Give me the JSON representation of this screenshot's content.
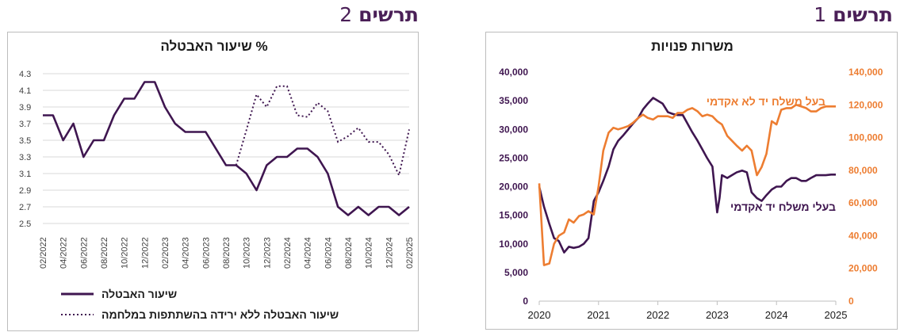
{
  "figures": [
    {
      "word": "תרשים",
      "number": "2"
    },
    {
      "word": "תרשים",
      "number": "1"
    }
  ],
  "colors": {
    "purple": "#3f1650",
    "orange": "#ed7d31",
    "heading": "#4a1f57",
    "grid": "#d9d9d9",
    "tick": "#404040"
  },
  "chart_data": [
    {
      "type": "line",
      "title": "שיעור האבטלה %",
      "xlabel": "",
      "ylabel": "",
      "ylim": [
        2.5,
        4.3
      ],
      "yticks": [
        "2.5",
        "2.7",
        "2.9",
        "3.1",
        "3.3",
        "3.5",
        "3.7",
        "3.9",
        "4.1",
        "4.3"
      ],
      "xticks": [
        "02/2022",
        "04/2022",
        "06/2022",
        "08/2022",
        "10/2022",
        "12/2022",
        "02/2023",
        "04/2023",
        "06/2023",
        "08/2023",
        "10/2023",
        "12/2023",
        "02/2024",
        "04/2024",
        "06/2024",
        "08/2024",
        "10/2024",
        "12/2024",
        "02/2025"
      ],
      "grid": true,
      "legend": "bottom",
      "series": [
        {
          "name": "שיעור האבטלה",
          "style": "solid",
          "color": "#3f1650",
          "values": [
            3.8,
            3.8,
            3.5,
            3.7,
            3.3,
            3.5,
            3.5,
            3.8,
            4.0,
            4.0,
            4.2,
            4.2,
            3.9,
            3.7,
            3.6,
            3.6,
            3.6,
            3.4,
            3.2,
            3.2,
            3.1,
            2.9,
            3.2,
            3.3,
            3.3,
            3.4,
            3.4,
            3.3,
            3.1,
            2.7,
            2.6,
            2.7,
            2.6,
            2.7,
            2.7,
            2.6,
            2.7
          ]
        },
        {
          "name": "שיעור האבטלה ללא ירידה בהשתתפות במלחמה",
          "style": "dotted",
          "color": "#3f1650",
          "start_index": 19,
          "values": [
            3.2,
            3.62,
            4.05,
            3.9,
            4.15,
            4.15,
            3.8,
            3.78,
            3.95,
            3.85,
            3.48,
            3.55,
            3.65,
            3.48,
            3.48,
            3.33,
            3.08,
            3.63
          ]
        }
      ]
    },
    {
      "type": "line",
      "title": "משרות פנויות",
      "xlabel": "",
      "ylabel": "",
      "xlim": [
        2020,
        2025
      ],
      "xticks": [
        "2020",
        "2021",
        "2022",
        "2023",
        "2024",
        "2025"
      ],
      "ylim_left": [
        0,
        40000
      ],
      "ylim_right": [
        0,
        140000
      ],
      "yticks_left": [
        "0",
        "5,000",
        "10,000",
        "15,000",
        "20,000",
        "25,000",
        "30,000",
        "35,000",
        "40,000"
      ],
      "yticks_right": [
        "0",
        "20,000",
        "40,000",
        "60,000",
        "80,000",
        "100,000",
        "120,000",
        "140,000"
      ],
      "grid": false,
      "series": [
        {
          "name": "בעלי משלח יד אקדמי",
          "axis": "left",
          "color": "#3f1650",
          "x": [
            2020.0,
            2020.08,
            2020.17,
            2020.25,
            2020.33,
            2020.42,
            2020.5,
            2020.58,
            2020.67,
            2020.75,
            2020.83,
            2020.92,
            2021.0,
            2021.08,
            2021.17,
            2021.25,
            2021.33,
            2021.42,
            2021.5,
            2021.58,
            2021.67,
            2021.75,
            2021.83,
            2021.92,
            2022.0,
            2022.08,
            2022.17,
            2022.25,
            2022.33,
            2022.42,
            2022.5,
            2022.58,
            2022.67,
            2022.75,
            2022.83,
            2022.92,
            2023.0,
            2023.04,
            2023.08,
            2023.17,
            2023.25,
            2023.33,
            2023.42,
            2023.5,
            2023.58,
            2023.67,
            2023.75,
            2023.83,
            2023.92,
            2024.0,
            2024.08,
            2024.17,
            2024.25,
            2024.33,
            2024.42,
            2024.5,
            2024.58,
            2024.67,
            2024.75,
            2024.83,
            2024.92,
            2025.0
          ],
          "values": [
            20000,
            16500,
            13500,
            11000,
            10500,
            8500,
            9500,
            9300,
            9500,
            10000,
            11000,
            17500,
            19000,
            21000,
            23500,
            26500,
            28000,
            29000,
            30000,
            31000,
            32000,
            33500,
            34500,
            35500,
            35000,
            34500,
            33000,
            32700,
            32500,
            32500,
            31000,
            29500,
            28000,
            26500,
            25000,
            23500,
            15500,
            18000,
            22000,
            21500,
            22000,
            22500,
            22800,
            22500,
            19000,
            18000,
            17500,
            18500,
            19500,
            20000,
            20000,
            21000,
            21500,
            21500,
            21000,
            21000,
            21500,
            22000,
            22000,
            22000,
            22100,
            22100
          ]
        },
        {
          "name": "בעל משלח יד לא אקדמי",
          "axis": "right",
          "color": "#ed7d31",
          "x": [
            2020.0,
            2020.08,
            2020.17,
            2020.25,
            2020.33,
            2020.42,
            2020.5,
            2020.58,
            2020.67,
            2020.75,
            2020.83,
            2020.92,
            2021.0,
            2021.08,
            2021.17,
            2021.25,
            2021.33,
            2021.42,
            2021.5,
            2021.58,
            2021.67,
            2021.75,
            2021.83,
            2021.92,
            2022.0,
            2022.08,
            2022.17,
            2022.25,
            2022.33,
            2022.42,
            2022.5,
            2022.58,
            2022.67,
            2022.75,
            2022.83,
            2022.92,
            2023.0,
            2023.08,
            2023.17,
            2023.25,
            2023.33,
            2023.42,
            2023.5,
            2023.58,
            2023.67,
            2023.75,
            2023.83,
            2023.92,
            2024.0,
            2024.08,
            2024.17,
            2024.25,
            2024.33,
            2024.42,
            2024.5,
            2024.58,
            2024.67,
            2024.75,
            2024.83,
            2024.92,
            2025.0
          ],
          "values": [
            72000,
            22000,
            23000,
            35000,
            40000,
            42000,
            50000,
            48000,
            52000,
            53000,
            55000,
            53000,
            70000,
            92000,
            103000,
            106000,
            105000,
            106000,
            107000,
            109000,
            112000,
            114000,
            112000,
            111000,
            113000,
            113000,
            113000,
            112000,
            115000,
            115000,
            117000,
            118000,
            116000,
            113000,
            114000,
            113000,
            110000,
            108000,
            101000,
            98000,
            95000,
            92000,
            95000,
            92000,
            77000,
            82000,
            90000,
            110000,
            108000,
            117000,
            118000,
            118000,
            120000,
            119000,
            118000,
            116000,
            116000,
            118000,
            119000,
            119000,
            119000
          ]
        }
      ],
      "annotations": [
        {
          "text": "בעל משלח יד לא אקדמי",
          "series": "בעל משלח יד לא אקדמי"
        },
        {
          "text": "בעלי משלח יד אקדמי",
          "series": "בעלי משלח יד אקדמי"
        }
      ]
    }
  ]
}
